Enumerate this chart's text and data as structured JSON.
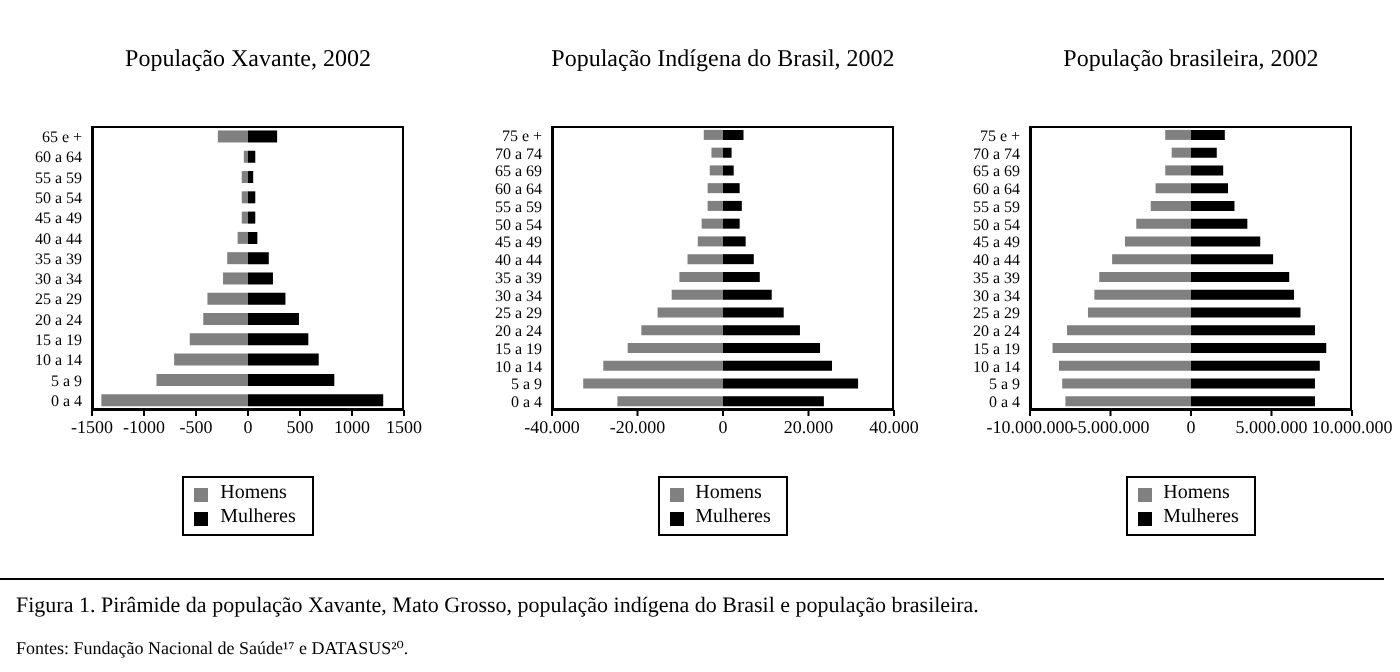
{
  "chart_data": [
    {
      "type": "bar",
      "title": "População Xavante, 2002",
      "orientation": "horizontal",
      "stacked": true,
      "legend": "bottom",
      "categories": [
        "65 e +",
        "60 a 64",
        "55 a 59",
        "50 a 54",
        "45 a 49",
        "40 a 44",
        "35 a 39",
        "30 a 34",
        "25 a 29",
        "20 a 24",
        "15 a 19",
        "10 a 14",
        "5 a 9",
        "0 a 4"
      ],
      "series": [
        {
          "name": "Homens",
          "color": "#808080",
          "values": [
            -290,
            -40,
            -60,
            -60,
            -60,
            -100,
            -200,
            -240,
            -390,
            -430,
            -560,
            -710,
            -880,
            -1410
          ]
        },
        {
          "name": "Mulheres",
          "color": "#000000",
          "values": [
            280,
            70,
            50,
            70,
            70,
            90,
            200,
            240,
            360,
            490,
            580,
            680,
            830,
            1300
          ]
        }
      ],
      "xlim": [
        -1500,
        1500
      ],
      "xticks": [
        -1500,
        -1000,
        -500,
        0,
        500,
        1000,
        1500
      ],
      "annotations": [
        "Figura 1. Pirâmide da população Xavante, Mato Grosso, população indígena do Brasil e população brasileira.",
        "Fontes: Fundação Nacional de Saúde¹⁷ e DATASUS²⁰."
      ]
    },
    {
      "type": "bar",
      "title": "População Indígena do Brasil, 2002",
      "orientation": "horizontal",
      "stacked": true,
      "legend": "bottom",
      "categories": [
        "75 e +",
        "70 a 74",
        "65 a 69",
        "60 a 64",
        "55 a 59",
        "50 a 54",
        "45 a 49",
        "40 a 44",
        "35 a 39",
        "30 a 34",
        "25 a 29",
        "20 a 24",
        "15 a 19",
        "10 a 14",
        "5 a 9",
        "0 a 4"
      ],
      "series": [
        {
          "name": "Homens",
          "color": "#808080",
          "values": [
            -4500,
            -2700,
            -3100,
            -3600,
            -3600,
            -5000,
            -5900,
            -8300,
            -10200,
            -12000,
            -15300,
            -19100,
            -22300,
            -28000,
            -32700,
            -24700
          ]
        },
        {
          "name": "Mulheres",
          "color": "#000000",
          "values": [
            4800,
            2000,
            2500,
            3900,
            4400,
            3900,
            5300,
            7200,
            8600,
            11400,
            14200,
            18000,
            22700,
            25500,
            31600,
            23600
          ]
        }
      ],
      "xlim": [
        -40000,
        40000
      ],
      "xticks": [
        {
          "value": -40000,
          "label": "-40.000"
        },
        {
          "value": -20000,
          "label": "-20.000"
        },
        0,
        {
          "value": 20000,
          "label": "20.000"
        },
        {
          "value": 40000,
          "label": "40.000"
        }
      ]
    },
    {
      "type": "bar",
      "title": "População brasileira, 2002",
      "orientation": "horizontal",
      "stacked": true,
      "legend": "bottom",
      "categories": [
        "75 e +",
        "70 a 74",
        "65 a 69",
        "60 a 64",
        "55 a 59",
        "50 a 54",
        "45 a 49",
        "40 a 44",
        "35 a 39",
        "30 a 34",
        "25 a 29",
        "20 a 24",
        "15 a 19",
        "10 a 14",
        "5 a 9",
        "0 a 4"
      ],
      "series": [
        {
          "name": "Homens",
          "color": "#808080",
          "values": [
            -1600000,
            -1200000,
            -1600000,
            -2200000,
            -2500000,
            -3400000,
            -4100000,
            -4900000,
            -5700000,
            -6000000,
            -6400000,
            -7700000,
            -8600000,
            -8200000,
            -8000000,
            -7800000
          ]
        },
        {
          "name": "Mulheres",
          "color": "#000000",
          "values": [
            2100000,
            1600000,
            2000000,
            2300000,
            2700000,
            3500000,
            4300000,
            5100000,
            6100000,
            6400000,
            6800000,
            7700000,
            8400000,
            8000000,
            7700000,
            7700000
          ]
        }
      ],
      "xlim": [
        -10000000,
        10000000
      ],
      "xticks": [
        {
          "value": -10000000,
          "label": "-10.000.000"
        },
        {
          "value": -5000000,
          "label": "-5.000.000"
        },
        0,
        {
          "value": 5000000,
          "label": "5.000.000"
        },
        {
          "value": 10000000,
          "label": "10.000.000"
        }
      ]
    }
  ]
}
